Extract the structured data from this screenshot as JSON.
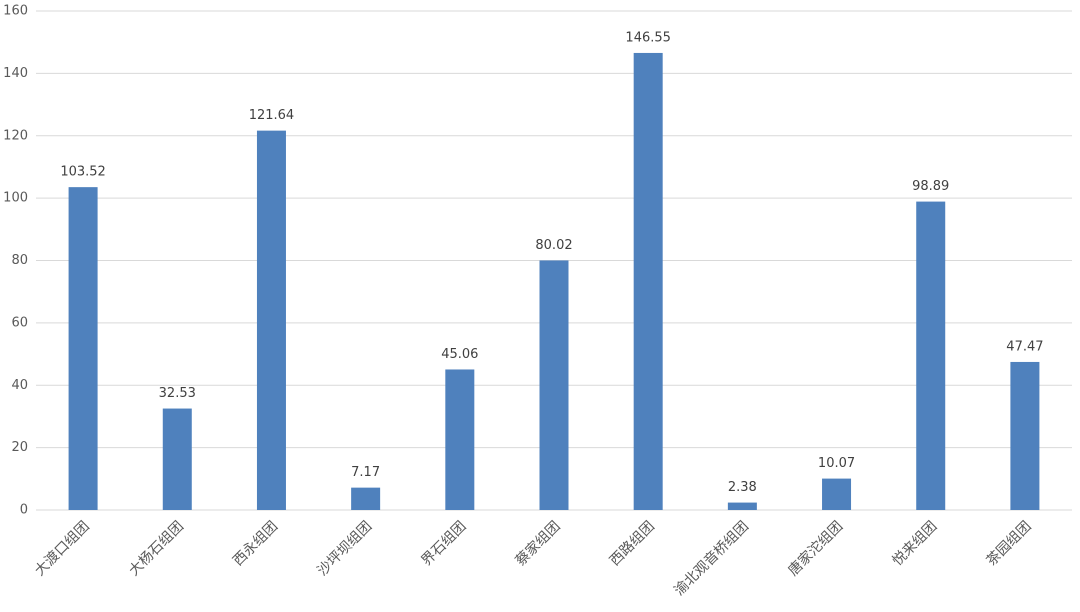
{
  "chart_data": {
    "type": "bar",
    "categories": [
      "大渡口组团",
      "大杨石组团",
      "西永组团",
      "沙坪坝组团",
      "界石组团",
      "蔡家组团",
      "西路组团",
      "渝北观音桥组团",
      "唐家沱组团",
      "悦来组团",
      "茶园组团"
    ],
    "values": [
      103.52,
      32.53,
      121.64,
      7.17,
      45.06,
      80.02,
      146.55,
      2.38,
      10.07,
      98.89,
      47.47
    ],
    "color": "#4f81bd",
    "ylim": [
      0,
      160
    ],
    "yticks": [
      0,
      20,
      40,
      60,
      80,
      100,
      120,
      140,
      160
    ],
    "grid": true
  }
}
